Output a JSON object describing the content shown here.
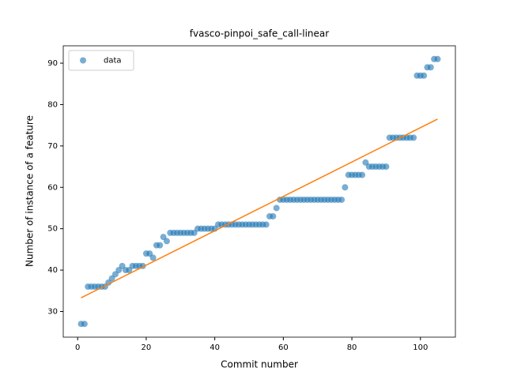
{
  "chart_data": {
    "type": "scatter",
    "title": "fvasco-pinpoi_safe_call-linear",
    "x_label": "Commit number",
    "y_label": "Number of instance of a feature",
    "x": [
      1,
      2,
      3,
      4,
      5,
      6,
      7,
      8,
      9,
      10,
      11,
      12,
      13,
      14,
      15,
      16,
      17,
      18,
      19,
      20,
      21,
      22,
      23,
      24,
      25,
      26,
      27,
      28,
      29,
      30,
      31,
      32,
      33,
      34,
      35,
      36,
      37,
      38,
      39,
      40,
      41,
      42,
      43,
      44,
      45,
      46,
      47,
      48,
      49,
      50,
      51,
      52,
      53,
      54,
      55,
      56,
      57,
      58,
      59,
      60,
      61,
      62,
      63,
      64,
      65,
      66,
      67,
      68,
      69,
      70,
      71,
      72,
      73,
      74,
      75,
      76,
      77,
      78,
      79,
      80,
      81,
      82,
      83,
      84,
      85,
      86,
      87,
      88,
      89,
      90,
      91,
      92,
      93,
      94,
      95,
      96,
      97,
      98,
      99,
      100,
      101,
      102,
      103,
      104,
      105
    ],
    "series": [
      {
        "name": "data",
        "color": "#1f77b4",
        "values": [
          27,
          27,
          36,
          36,
          36,
          36,
          36,
          36,
          37,
          38,
          39,
          40,
          41,
          40,
          40,
          41,
          41,
          41,
          41,
          44,
          44,
          43,
          46,
          46,
          48,
          47,
          49,
          49,
          49,
          49,
          49,
          49,
          49,
          49,
          50,
          50,
          50,
          50,
          50,
          50,
          51,
          51,
          51,
          51,
          51,
          51,
          51,
          51,
          51,
          51,
          51,
          51,
          51,
          51,
          51,
          53,
          53,
          55,
          57,
          57,
          57,
          57,
          57,
          57,
          57,
          57,
          57,
          57,
          57,
          57,
          57,
          57,
          57,
          57,
          57,
          57,
          57,
          60,
          63,
          63,
          63,
          63,
          63,
          66,
          65,
          65,
          65,
          65,
          65,
          65,
          72,
          72,
          72,
          72,
          72,
          72,
          72,
          72,
          87,
          87,
          87,
          89,
          89,
          91,
          91
        ]
      }
    ],
    "trend_line": {
      "x": [
        1,
        105
      ],
      "y": [
        33.3,
        76.5
      ],
      "color": "#ff7f0e"
    },
    "xlim": [
      -4.2,
      110.2
    ],
    "xticks": [
      0,
      20,
      40,
      60,
      80,
      100
    ],
    "ylim": [
      23.8,
      94.2
    ],
    "yticks": [
      30,
      40,
      50,
      60,
      70,
      80,
      90
    ],
    "legend": "upper left"
  }
}
